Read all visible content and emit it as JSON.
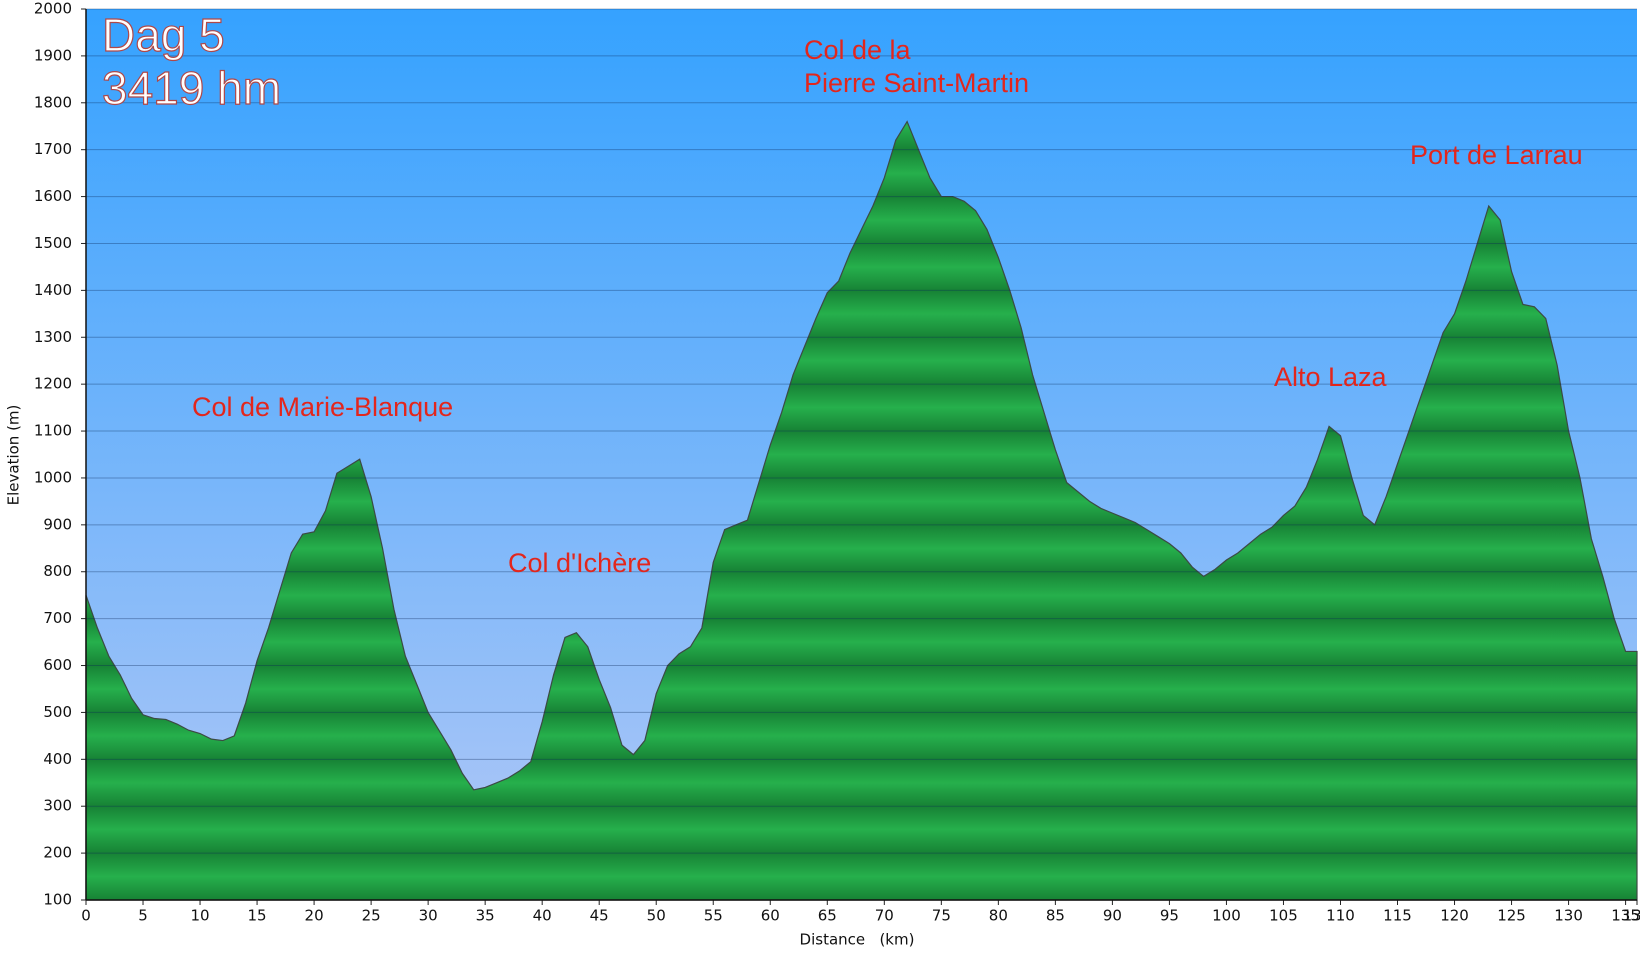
{
  "chart_data": {
    "type": "area",
    "title": "Dag 5",
    "subtitle": "3419 hm",
    "x_label": "Distance   (km)",
    "y_label": "Elevation (m)",
    "annotations": [
      "Col de Marie-Blanque",
      "Col d'Ichère",
      "Col de la",
      "Pierre Saint-Martin",
      "Alto Laza",
      "Port de Larrau"
    ],
    "x": [
      0,
      1,
      2,
      3,
      4,
      5,
      6,
      7,
      8,
      9,
      10,
      11,
      12,
      13,
      14,
      15,
      16,
      17,
      18,
      19,
      20,
      21,
      22,
      23,
      24,
      25,
      26,
      27,
      28,
      29,
      30,
      31,
      32,
      33,
      34,
      35,
      36,
      37,
      38,
      39,
      40,
      41,
      42,
      43,
      44,
      45,
      46,
      47,
      48,
      49,
      50,
      51,
      52,
      53,
      54,
      55,
      56,
      57,
      58,
      59,
      60,
      61,
      62,
      63,
      64,
      65,
      66,
      67,
      68,
      69,
      70,
      71,
      72,
      73,
      74,
      75,
      76,
      77,
      78,
      79,
      80,
      81,
      82,
      83,
      84,
      85,
      86,
      87,
      88,
      89,
      90,
      91,
      92,
      93,
      94,
      95,
      96,
      97,
      98,
      99,
      100,
      101,
      102,
      103,
      104,
      105,
      106,
      107,
      108,
      109,
      110,
      111,
      112,
      113,
      114,
      115,
      116,
      117,
      118,
      119,
      120,
      121,
      122,
      123,
      124,
      125,
      126,
      127,
      128,
      129,
      130,
      131,
      132,
      133,
      134,
      135,
      136
    ],
    "series": [
      {
        "color": "#22a847",
        "values": [
          750,
          680,
          620,
          580,
          530,
          495,
          487,
          485,
          475,
          462,
          455,
          443,
          440,
          450,
          520,
          610,
          680,
          760,
          840,
          880,
          885,
          930,
          1010,
          1025,
          1040,
          960,
          850,
          720,
          620,
          560,
          500,
          460,
          420,
          370,
          335,
          340,
          350,
          360,
          375,
          395,
          480,
          580,
          660,
          670,
          640,
          570,
          510,
          430,
          410,
          440,
          540,
          600,
          625,
          640,
          680,
          820,
          890,
          900,
          910,
          990,
          1070,
          1140,
          1220,
          1280,
          1340,
          1395,
          1420,
          1480,
          1530,
          1580,
          1640,
          1720,
          1760,
          1700,
          1640,
          1600,
          1600,
          1590,
          1570,
          1530,
          1470,
          1400,
          1320,
          1220,
          1140,
          1060,
          990,
          970,
          950,
          935,
          925,
          915,
          905,
          890,
          875,
          860,
          840,
          810,
          790,
          805,
          825,
          840,
          860,
          880,
          895,
          920,
          940,
          980,
          1040,
          1110,
          1090,
          1000,
          920,
          900,
          960,
          1030,
          1100,
          1170,
          1240,
          1310,
          1350,
          1420,
          1500,
          1580,
          1550,
          1440,
          1370,
          1365,
          1340,
          1240,
          1100,
          1000,
          870,
          790,
          700,
          630,
          630
        ]
      }
    ],
    "xlim": [
      0,
      136
    ],
    "ylim": [
      100,
      2000
    ],
    "xticks": [
      0,
      5,
      10,
      15,
      20,
      25,
      30,
      35,
      40,
      45,
      50,
      55,
      60,
      65,
      70,
      75,
      80,
      85,
      90,
      95,
      100,
      105,
      110,
      115,
      120,
      125,
      130,
      135,
      136
    ],
    "yticks": [
      100,
      200,
      300,
      400,
      500,
      600,
      700,
      800,
      900,
      1000,
      1100,
      1200,
      1300,
      1400,
      1500,
      1600,
      1700,
      1800,
      1900,
      2000
    ],
    "grid": true
  }
}
